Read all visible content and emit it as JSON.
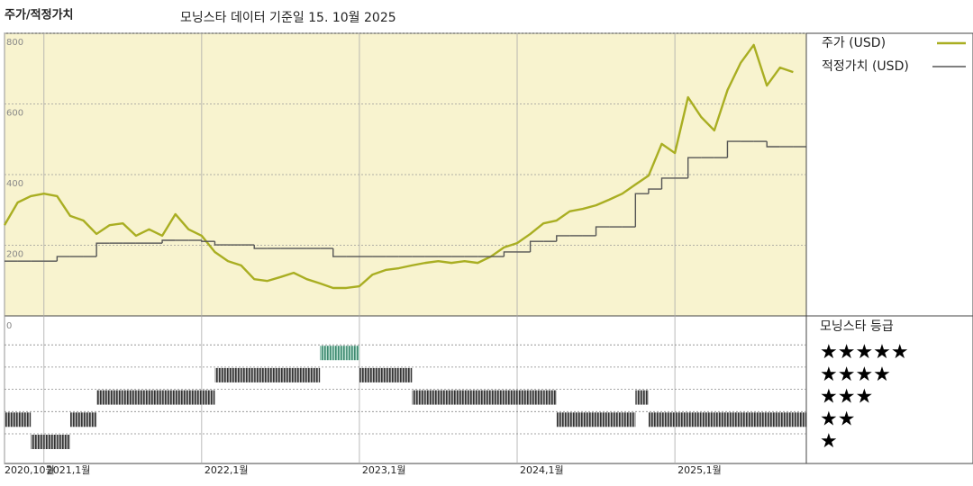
{
  "chart_data": [
    {
      "type": "line",
      "title": "주가/적정가치",
      "subtitle": "모닝스타 데이터 기준일 15. 10월 2025",
      "x": [
        "2020-10",
        "2020-11",
        "2020-12",
        "2021-01",
        "2021-02",
        "2021-03",
        "2021-04",
        "2021-05",
        "2021-06",
        "2021-07",
        "2021-08",
        "2021-09",
        "2021-10",
        "2021-11",
        "2021-12",
        "2022-01",
        "2022-02",
        "2022-03",
        "2022-04",
        "2022-05",
        "2022-06",
        "2022-07",
        "2022-08",
        "2022-09",
        "2022-10",
        "2022-11",
        "2022-12",
        "2023-01",
        "2023-02",
        "2023-03",
        "2023-04",
        "2023-05",
        "2023-06",
        "2023-07",
        "2023-08",
        "2023-09",
        "2023-10",
        "2023-11",
        "2023-12",
        "2024-01",
        "2024-02",
        "2024-03",
        "2024-04",
        "2024-05",
        "2024-06",
        "2024-07",
        "2024-08",
        "2024-09",
        "2024-10",
        "2024-11",
        "2024-12",
        "2025-01",
        "2025-02",
        "2025-03",
        "2025-04",
        "2025-05",
        "2025-06",
        "2025-07",
        "2025-08",
        "2025-09",
        "2025-10"
      ],
      "xlim": [
        "2020-10",
        "2025-11"
      ],
      "xticks": [
        {
          "value": "2020-10",
          "label": "2020,10월"
        },
        {
          "value": "2021-01",
          "label": "2021,1월"
        },
        {
          "value": "2022-01",
          "label": "2022,1월"
        },
        {
          "value": "2023-01",
          "label": "2023,1월"
        },
        {
          "value": "2024-01",
          "label": "2024,1월"
        },
        {
          "value": "2025-01",
          "label": "2025,1월"
        }
      ],
      "ylim": [
        0,
        800
      ],
      "yticks": [
        200,
        400,
        600,
        800
      ],
      "grid": true,
      "series": [
        {
          "name": "주가 (USD)",
          "color": "#a9ae22",
          "values": [
            257,
            321,
            339,
            346,
            339,
            283,
            270,
            232,
            257,
            262,
            227,
            245,
            227,
            288,
            245,
            227,
            181,
            155,
            143,
            104,
            99,
            110,
            122,
            104,
            92,
            79,
            79,
            84,
            117,
            130,
            135,
            143,
            150,
            155,
            150,
            155,
            150,
            168,
            194,
            206,
            232,
            262,
            270,
            296,
            303,
            313,
            329,
            346,
            372,
            397,
            487,
            461,
            619,
            563,
            525,
            639,
            716,
            767,
            652,
            703,
            690
          ]
        },
        {
          "name": "적정가치 (USD)",
          "color": "#555555",
          "style": "step",
          "values": [
            155,
            155,
            155,
            155,
            168,
            168,
            168,
            206,
            206,
            206,
            206,
            206,
            214,
            214,
            214,
            211,
            201,
            201,
            201,
            191,
            191,
            191,
            191,
            191,
            191,
            168,
            168,
            168,
            168,
            168,
            168,
            168,
            168,
            168,
            168,
            168,
            168,
            168,
            181,
            181,
            211,
            211,
            227,
            227,
            227,
            252,
            252,
            252,
            346,
            359,
            390,
            390,
            448,
            448,
            448,
            494,
            494,
            494,
            479,
            479,
            479
          ]
        }
      ]
    },
    {
      "type": "rating",
      "title": "모닝스타 등급",
      "yticks": [
        0
      ],
      "levels": [
        "★",
        "★★",
        "★★★",
        "★★★★",
        "★★★★★"
      ],
      "colors": [
        "#333333",
        "#333333",
        "#333333",
        "#333333",
        "#3d8a70"
      ],
      "values": [
        2,
        2,
        1,
        1,
        1,
        2,
        2,
        3,
        3,
        3,
        3,
        3,
        3,
        3,
        3,
        3,
        4,
        4,
        4,
        4,
        4,
        4,
        4,
        4,
        5,
        5,
        5,
        4,
        4,
        4,
        4,
        3,
        3,
        3,
        3,
        3,
        3,
        3,
        3,
        3,
        3,
        3,
        2,
        2,
        2,
        2,
        2,
        2,
        3,
        2,
        2,
        2,
        2,
        2,
        2,
        2,
        2,
        2,
        2,
        2,
        2
      ]
    }
  ]
}
